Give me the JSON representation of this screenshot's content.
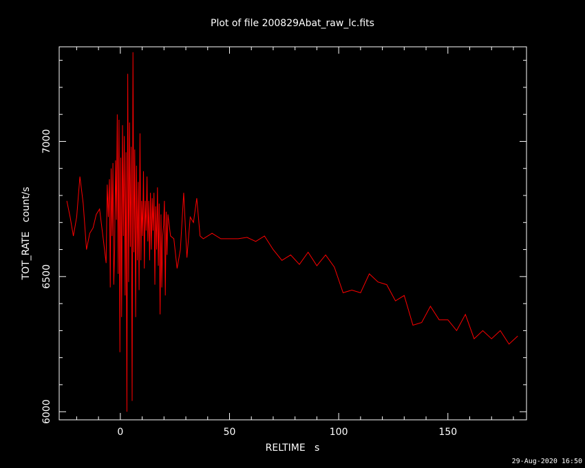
{
  "chart_data": {
    "type": "line",
    "title": "Plot of file 200829Abat_raw_lc.fits",
    "xlabel": "RELTIME   s",
    "ylabel": "TOT_RATE   count/s",
    "xlim": [
      -28,
      186
    ],
    "ylim": [
      5970,
      7350
    ],
    "xticks": [
      0,
      50,
      100,
      150
    ],
    "yticks": [
      6000,
      6500,
      7000
    ],
    "line_color": "#ff0000",
    "grid": false,
    "series": [
      {
        "x": [
          -24.5,
          -23,
          -21.5,
          -20,
          -18.5,
          -17,
          -15.5,
          -14,
          -12.5,
          -11,
          -9.5,
          -8,
          -6.5,
          -6,
          -5.5,
          -5,
          -4.6,
          -4.2,
          -3.8,
          -3.4,
          -3,
          -2.6,
          -2.2,
          -1.8,
          -1.4,
          -1,
          -0.6,
          -0.2,
          0.2,
          0.6,
          1,
          1.4,
          1.8,
          2.2,
          2.6,
          3,
          3.4,
          3.8,
          4.2,
          4.6,
          5,
          5.4,
          5.8,
          6.2,
          6.6,
          7,
          7.4,
          7.8,
          8.2,
          8.6,
          9,
          9.4,
          9.8,
          10.2,
          10.6,
          11,
          11.4,
          11.8,
          12.2,
          12.6,
          13,
          13.4,
          13.8,
          14.2,
          14.6,
          15,
          15.4,
          15.8,
          16.2,
          16.6,
          17,
          17.4,
          17.8,
          18.2,
          18.6,
          19,
          19.4,
          19.8,
          20.2,
          20.6,
          21,
          21.4,
          21.8,
          23,
          24.5,
          26,
          27.5,
          29,
          30.5,
          32,
          33.5,
          35,
          36.5,
          38,
          42,
          46,
          50,
          54,
          58,
          62,
          66,
          70,
          74,
          78,
          82,
          86,
          90,
          94,
          98,
          102,
          106,
          110,
          114,
          118,
          122,
          126,
          130,
          134,
          138,
          142,
          146,
          150,
          154,
          158,
          162,
          166,
          170,
          174,
          178,
          182
        ],
        "y": [
          6780,
          6720,
          6650,
          6720,
          6870,
          6770,
          6600,
          6660,
          6680,
          6730,
          6750,
          6650,
          6550,
          6840,
          6720,
          6860,
          6460,
          6900,
          6650,
          6920,
          6470,
          6600,
          6930,
          6710,
          7100,
          6510,
          7080,
          6220,
          6940,
          6350,
          7060,
          6650,
          7020,
          6430,
          6960,
          6000,
          7250,
          6480,
          7070,
          6610,
          6980,
          6040,
          7330,
          6590,
          6970,
          6350,
          6910,
          6560,
          6850,
          6450,
          7030,
          6560,
          6780,
          6650,
          6890,
          6530,
          6780,
          6670,
          6870,
          6630,
          6780,
          6560,
          6810,
          6600,
          6790,
          6670,
          6810,
          6470,
          6760,
          6600,
          6830,
          6540,
          6770,
          6360,
          6730,
          6460,
          6650,
          6690,
          6780,
          6430,
          6740,
          6580,
          6730,
          6650,
          6640,
          6530,
          6600,
          6810,
          6570,
          6720,
          6700,
          6790,
          6650,
          6640,
          6660,
          6640,
          6640,
          6640,
          6645,
          6630,
          6650,
          6600,
          6560,
          6580,
          6545,
          6590,
          6540,
          6580,
          6535,
          6440,
          6450,
          6440,
          6510,
          6480,
          6470,
          6410,
          6430,
          6320,
          6330,
          6390,
          6340,
          6340,
          6300,
          6360,
          6270,
          6300,
          6270,
          6300,
          6250,
          6280
        ]
      }
    ]
  },
  "footer": {
    "timestamp": "29-Aug-2020 16:50"
  }
}
